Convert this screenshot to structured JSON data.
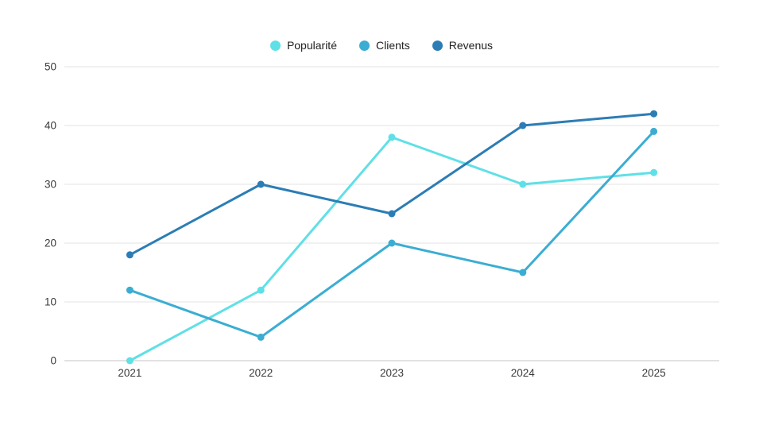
{
  "chart_data": {
    "type": "line",
    "title": "",
    "xlabel": "",
    "ylabel": "",
    "categories": [
      "2021",
      "2022",
      "2023",
      "2024",
      "2025"
    ],
    "series": [
      {
        "id": "popularite",
        "name": "Popularité",
        "color": "#5fe0e6",
        "values": [
          0,
          12,
          38,
          30,
          32
        ]
      },
      {
        "id": "clients",
        "name": "Clients",
        "color": "#3badd2",
        "values": [
          12,
          4,
          20,
          15,
          39
        ]
      },
      {
        "id": "revenus",
        "name": "Revenus",
        "color": "#2c7db5",
        "values": [
          18,
          30,
          25,
          40,
          42
        ]
      }
    ],
    "ylim": [
      0,
      50
    ],
    "yticks": [
      0,
      10,
      20,
      30,
      40,
      50
    ],
    "grid": true,
    "legend_position": "top-center",
    "colors": {
      "background": "#ffffff",
      "gridline": "#e3e3e3",
      "axis_line": "#c4c4c4",
      "tick_text": "#3a3a3a",
      "legend_text": "#212121"
    }
  }
}
